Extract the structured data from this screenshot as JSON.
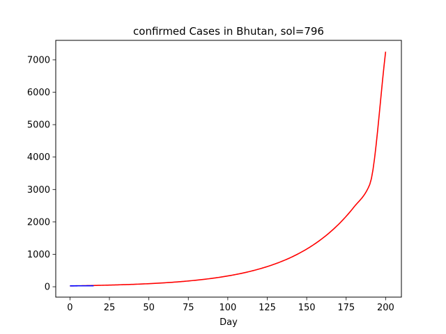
{
  "chart_data": {
    "type": "line",
    "title": "confirmed Cases in Bhutan, sol=796",
    "xlabel": "Day",
    "ylabel": "",
    "xlim": [
      -9,
      210
    ],
    "ylim": [
      -320,
      7600
    ],
    "xticks": [
      0,
      25,
      50,
      75,
      100,
      125,
      150,
      175,
      200
    ],
    "yticks": [
      0,
      1000,
      2000,
      3000,
      4000,
      5000,
      6000,
      7000
    ],
    "grid": false,
    "series": [
      {
        "color": "#ff0000",
        "x": [
          0,
          10,
          20,
          30,
          40,
          50,
          60,
          70,
          80,
          90,
          100,
          110,
          120,
          130,
          140,
          150,
          160,
          170,
          180,
          190,
          200
        ],
        "y": [
          27,
          34,
          45,
          58,
          74,
          95,
          122,
          157,
          202,
          259,
          333,
          427,
          549,
          705,
          905,
          1162,
          1493,
          1917,
          2462,
          3162,
          7250
        ]
      },
      {
        "color": "#0000ff",
        "x": [
          0,
          2,
          4,
          6,
          8,
          10,
          12,
          15
        ],
        "y": [
          27,
          27,
          28,
          29,
          29,
          29,
          30,
          31
        ]
      }
    ]
  }
}
